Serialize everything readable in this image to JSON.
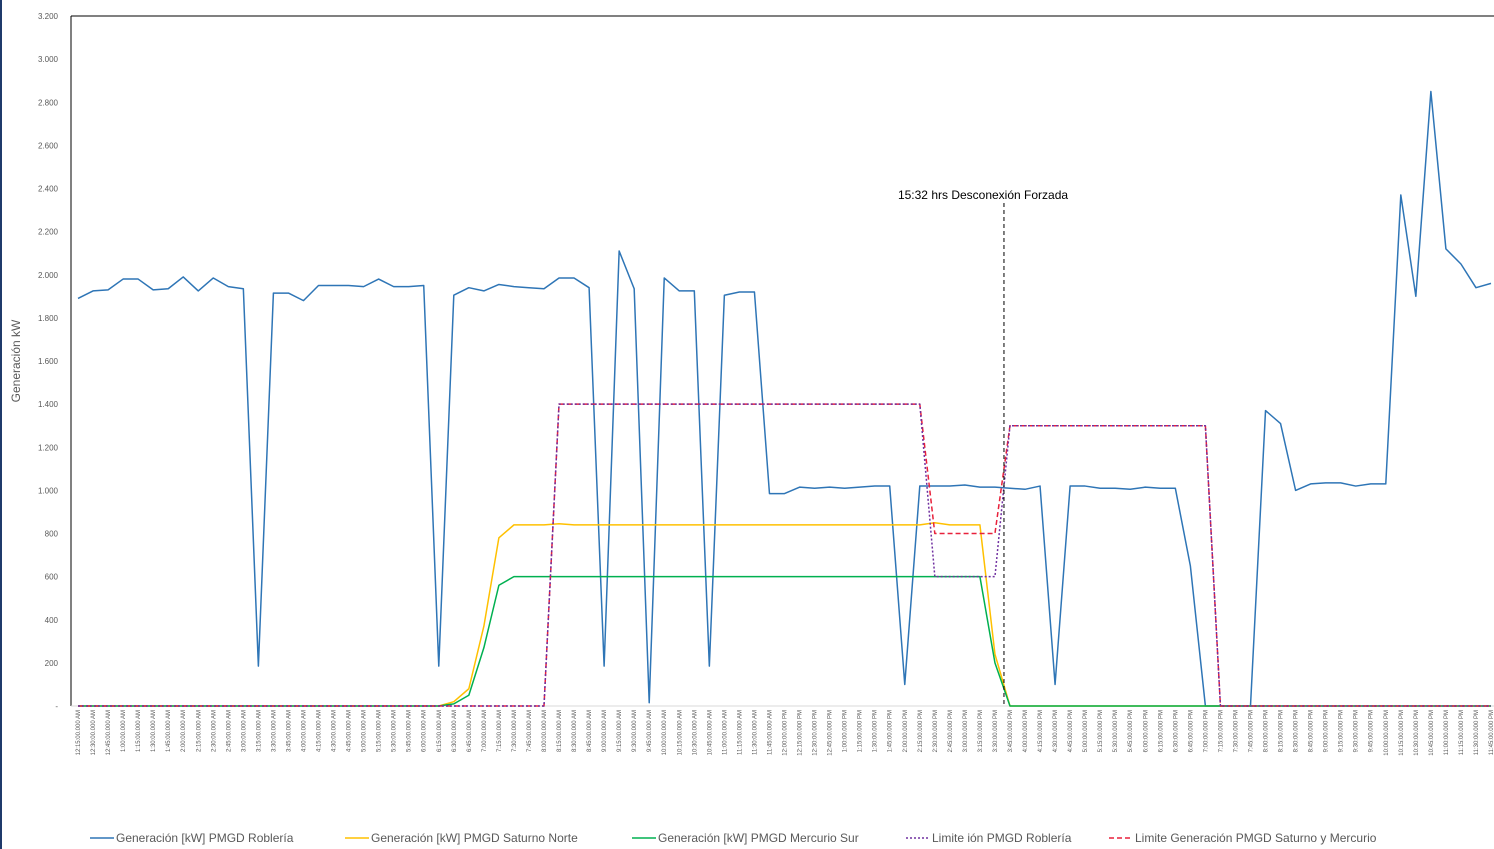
{
  "chart_data": {
    "type": "line",
    "ylabel": "Generación kW",
    "ylim": [
      0,
      3200
    ],
    "y_ticks": [
      "-",
      "200",
      "400",
      "600",
      "800",
      "1.000",
      "1.200",
      "1.400",
      "1.600",
      "1.800",
      "2.000",
      "2.200",
      "2.400",
      "2.600",
      "2.800",
      "3.000",
      "3.200"
    ],
    "y_tick_values": [
      0,
      200,
      400,
      600,
      800,
      1000,
      1200,
      1400,
      1600,
      1800,
      2000,
      2200,
      2400,
      2600,
      2800,
      3000,
      3200
    ],
    "categories": [
      "12:15:00.000 AM",
      "12:30:00.000 AM",
      "12:45:00.000 AM",
      "1:00:00.000 AM",
      "1:15:00.000 AM",
      "1:30:00.000 AM",
      "1:45:00.000 AM",
      "2:00:00.000 AM",
      "2:15:00.000 AM",
      "2:30:00.000 AM",
      "2:45:00.000 AM",
      "3:00:00.000 AM",
      "3:15:00.000 AM",
      "3:30:00.000 AM",
      "3:45:00.000 AM",
      "4:00:00.000 AM",
      "4:15:00.000 AM",
      "4:30:00.000 AM",
      "4:45:00.000 AM",
      "5:00:00.000 AM",
      "5:15:00.000 AM",
      "5:30:00.000 AM",
      "5:45:00.000 AM",
      "6:00:00.000 AM",
      "6:15:00.000 AM",
      "6:30:00.000 AM",
      "6:45:00.000 AM",
      "7:00:00.000 AM",
      "7:15:00.000 AM",
      "7:30:00.000 AM",
      "7:45:00.000 AM",
      "8:00:00.000 AM",
      "8:15:00.000 AM",
      "8:30:00.000 AM",
      "8:45:00.000 AM",
      "9:00:00.000 AM",
      "9:15:00.000 AM",
      "9:30:00.000 AM",
      "9:45:00.000 AM",
      "10:00:00.000 AM",
      "10:15:00.000 AM",
      "10:30:00.000 AM",
      "10:45:00.000 AM",
      "11:00:00.000 AM",
      "11:15:00.000 AM",
      "11:30:00.000 AM",
      "11:45:00.000 AM",
      "12:00:00.000 PM",
      "12:15:00.000 PM",
      "12:30:00.000 PM",
      "12:45:00.000 PM",
      "1:00:00.000 PM",
      "1:15:00.000 PM",
      "1:30:00.000 PM",
      "1:45:00.000 PM",
      "2:00:00.000 PM",
      "2:15:00.000 PM",
      "2:30:00.000 PM",
      "2:45:00.000 PM",
      "3:00:00.000 PM",
      "3:15:00.000 PM",
      "3:30:00.000 PM",
      "3:45:00.000 PM",
      "4:00:00.000 PM",
      "4:15:00.000 PM",
      "4:30:00.000 PM",
      "4:45:00.000 PM",
      "5:00:00.000 PM",
      "5:15:00.000 PM",
      "5:30:00.000 PM",
      "5:45:00.000 PM",
      "6:00:00.000 PM",
      "6:15:00.000 PM",
      "6:30:00.000 PM",
      "6:45:00.000 PM",
      "7:00:00.000 PM",
      "7:15:00.000 PM",
      "7:30:00.000 PM",
      "7:45:00.000 PM",
      "8:00:00.000 PM",
      "8:15:00.000 PM",
      "8:30:00.000 PM",
      "8:45:00.000 PM",
      "9:00:00.000 PM",
      "9:15:00.000 PM",
      "9:30:00.000 PM",
      "9:45:00.000 PM",
      "10:00:00.000 PM",
      "10:15:00.000 PM",
      "10:30:00.000 PM",
      "10:45:00.000 PM",
      "11:00:00.000 PM",
      "11:15:00.000 PM",
      "11:30:00.000 PM",
      "11:45:00.000 PM"
    ],
    "series": [
      {
        "name": "Generación  [kW] PMGD Roblería",
        "color": "#2e75b6",
        "dash": "solid",
        "values": [
          1890,
          1925,
          1930,
          1980,
          1980,
          1930,
          1935,
          1990,
          1925,
          1985,
          1945,
          1935,
          185,
          1915,
          1915,
          1880,
          1950,
          1950,
          1950,
          1945,
          1980,
          1945,
          1945,
          1950,
          185,
          1905,
          1940,
          1925,
          1955,
          1945,
          1940,
          1935,
          1985,
          1985,
          1940,
          185,
          2110,
          1935,
          15,
          1985,
          1925,
          1925,
          185,
          1905,
          1920,
          1920,
          985,
          985,
          1015,
          1010,
          1015,
          1010,
          1015,
          1020,
          1020,
          100,
          1020,
          1020,
          1020,
          1025,
          1015,
          1015,
          1010,
          1005,
          1020,
          100,
          1020,
          1020,
          1010,
          1010,
          1005,
          1015,
          1010,
          1010,
          650,
          0,
          0,
          0,
          0,
          1370,
          1310,
          1000,
          1030,
          1035,
          1035,
          1020,
          1030,
          1030,
          2370,
          1900,
          2850,
          2120,
          2050,
          1940,
          1960
        ]
      },
      {
        "name": "Generación [kW] PMGD Saturno Norte",
        "color": "#ffc000",
        "dash": "solid",
        "values": [
          0,
          0,
          0,
          0,
          0,
          0,
          0,
          0,
          0,
          0,
          0,
          0,
          0,
          0,
          0,
          0,
          0,
          0,
          0,
          0,
          0,
          0,
          0,
          0,
          0,
          20,
          80,
          370,
          780,
          840,
          840,
          840,
          845,
          840,
          840,
          840,
          840,
          840,
          840,
          840,
          840,
          840,
          840,
          840,
          840,
          840,
          840,
          840,
          840,
          840,
          840,
          840,
          840,
          840,
          840,
          840,
          840,
          850,
          840,
          840,
          840,
          240,
          0,
          0,
          0,
          0,
          0,
          0,
          0,
          0,
          0,
          0,
          0,
          0,
          0,
          0,
          0,
          0,
          0,
          0,
          0,
          0,
          0,
          0,
          0,
          0,
          0,
          0,
          0,
          0,
          0,
          0,
          0,
          0,
          0
        ]
      },
      {
        "name": "Generación [kW] PMGD Mercurio Sur",
        "color": "#00b050",
        "dash": "solid",
        "values": [
          0,
          0,
          0,
          0,
          0,
          0,
          0,
          0,
          0,
          0,
          0,
          0,
          0,
          0,
          0,
          0,
          0,
          0,
          0,
          0,
          0,
          0,
          0,
          0,
          0,
          10,
          50,
          270,
          560,
          600,
          600,
          600,
          600,
          600,
          600,
          600,
          600,
          600,
          600,
          600,
          600,
          600,
          600,
          600,
          600,
          600,
          600,
          600,
          600,
          600,
          600,
          600,
          600,
          600,
          600,
          600,
          600,
          600,
          600,
          600,
          600,
          200,
          0,
          0,
          0,
          0,
          0,
          0,
          0,
          0,
          0,
          0,
          0,
          0,
          0,
          0,
          0,
          0,
          0,
          0,
          0,
          0,
          0,
          0,
          0,
          0,
          0,
          0,
          0,
          0,
          0,
          0,
          0,
          0,
          0
        ]
      },
      {
        "name": "Limite ión PMGD Roblería",
        "color": "#7030a0",
        "dash": "dot",
        "values": [
          0,
          0,
          0,
          0,
          0,
          0,
          0,
          0,
          0,
          0,
          0,
          0,
          0,
          0,
          0,
          0,
          0,
          0,
          0,
          0,
          0,
          0,
          0,
          0,
          0,
          0,
          0,
          0,
          0,
          0,
          0,
          0,
          1400,
          1400,
          1400,
          1400,
          1400,
          1400,
          1400,
          1400,
          1400,
          1400,
          1400,
          1400,
          1400,
          1400,
          1400,
          1400,
          1400,
          1400,
          1400,
          1400,
          1400,
          1400,
          1400,
          1400,
          1400,
          600,
          600,
          600,
          600,
          600,
          1300,
          1300,
          1300,
          1300,
          1300,
          1300,
          1300,
          1300,
          1300,
          1300,
          1300,
          1300,
          1300,
          1300,
          0,
          0,
          0,
          0,
          0,
          0,
          0,
          0,
          0,
          0,
          0,
          0,
          0,
          0,
          0,
          0,
          0,
          0,
          0
        ]
      },
      {
        "name": "Limite Generación PMGD Saturno y Mercurio",
        "color": "#e8213b",
        "dash": "dash",
        "values": [
          0,
          0,
          0,
          0,
          0,
          0,
          0,
          0,
          0,
          0,
          0,
          0,
          0,
          0,
          0,
          0,
          0,
          0,
          0,
          0,
          0,
          0,
          0,
          0,
          0,
          0,
          0,
          0,
          0,
          0,
          0,
          0,
          1400,
          1400,
          1400,
          1400,
          1400,
          1400,
          1400,
          1400,
          1400,
          1400,
          1400,
          1400,
          1400,
          1400,
          1400,
          1400,
          1400,
          1400,
          1400,
          1400,
          1400,
          1400,
          1400,
          1400,
          1400,
          800,
          800,
          800,
          800,
          800,
          1300,
          1300,
          1300,
          1300,
          1300,
          1300,
          1300,
          1300,
          1300,
          1300,
          1300,
          1300,
          1300,
          1300,
          0,
          0,
          0,
          0,
          0,
          0,
          0,
          0,
          0,
          0,
          0,
          0,
          0,
          0,
          0,
          0,
          0,
          0,
          0
        ]
      }
    ],
    "annotation": {
      "text": "15:32 hrs Desconexión Forzada",
      "x_index": 61.6
    },
    "grid": false,
    "legend": "bottom"
  }
}
